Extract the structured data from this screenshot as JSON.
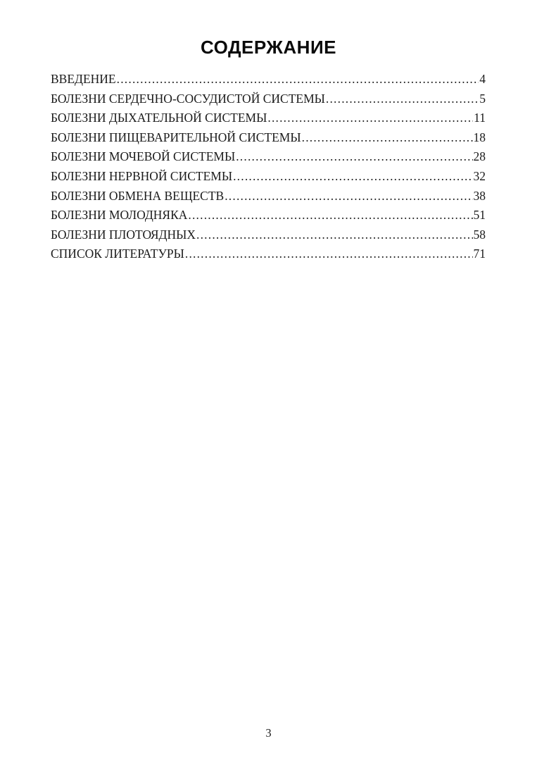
{
  "page": {
    "title": "СОДЕРЖАНИЕ",
    "footer_page_number": "3"
  },
  "toc": {
    "entries": [
      {
        "label": "ВВЕДЕНИЕ",
        "page": "4"
      },
      {
        "label": "БОЛЕЗНИ СЕРДЕЧНО-СОСУДИСТОЙ СИСТЕМЫ",
        "page": "5"
      },
      {
        "label": "БОЛЕЗНИ ДЫХАТЕЛЬНОЙ СИСТЕМЫ",
        "page": "11"
      },
      {
        "label": "БОЛЕЗНИ ПИЩЕВАРИТЕЛЬНОЙ СИСТЕМЫ",
        "page": "18"
      },
      {
        "label": "БОЛЕЗНИ МОЧЕВОЙ СИСТЕМЫ",
        "page": "28"
      },
      {
        "label": "БОЛЕЗНИ НЕРВНОЙ СИСТЕМЫ",
        "page": "32"
      },
      {
        "label": "БОЛЕЗНИ ОБМЕНА ВЕЩЕСТВ",
        "page": "38"
      },
      {
        "label": "БОЛЕЗНИ МОЛОДНЯКА",
        "page": "51"
      },
      {
        "label": "БОЛЕЗНИ ПЛОТОЯДНЫХ",
        "page": "58"
      },
      {
        "label": "СПИСОК ЛИТЕРАТУРЫ",
        "page": "71"
      }
    ]
  }
}
